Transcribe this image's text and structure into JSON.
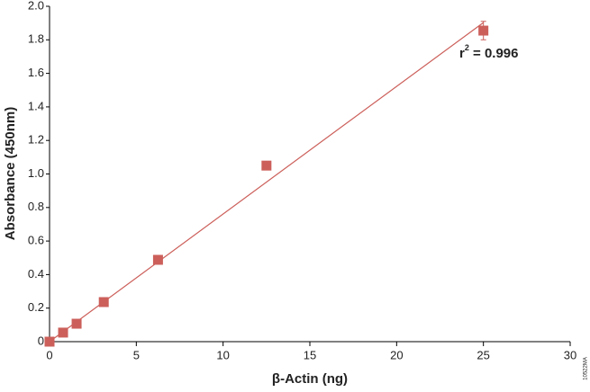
{
  "chart_data": {
    "type": "scatter",
    "x_label": "β-Actin (ng)",
    "y_label": "Absorbance (450nm)",
    "x": [
      0,
      0.78,
      1.56,
      3.125,
      6.25,
      12.5,
      25
    ],
    "series": [
      {
        "color": "#cc5f5a",
        "values": [
          0,
          0.054,
          0.107,
          0.236,
          0.488,
          1.05,
          1.855
        ],
        "errors": [
          null,
          null,
          null,
          null,
          null,
          null,
          0.055
        ]
      }
    ],
    "fit": {
      "color": "#cc5f5a",
      "x": [
        0,
        25
      ],
      "y": [
        0,
        1.903
      ]
    },
    "annotation": {
      "base": "r",
      "superscript": "2",
      "text": " = 0.996"
    },
    "xlim": [
      0,
      30
    ],
    "xticks": [
      0,
      5,
      10,
      15,
      20,
      25,
      30
    ],
    "ylim": [
      0,
      2
    ],
    "yticks": [
      0,
      0.2,
      0.4,
      0.6,
      0.8,
      {
        "value": 1,
        "label": "1.0"
      },
      1.2,
      1.4,
      1.6,
      1.8,
      {
        "value": 2,
        "label": "2.0"
      }
    ],
    "grid": false,
    "figure_id": "10522MA"
  }
}
